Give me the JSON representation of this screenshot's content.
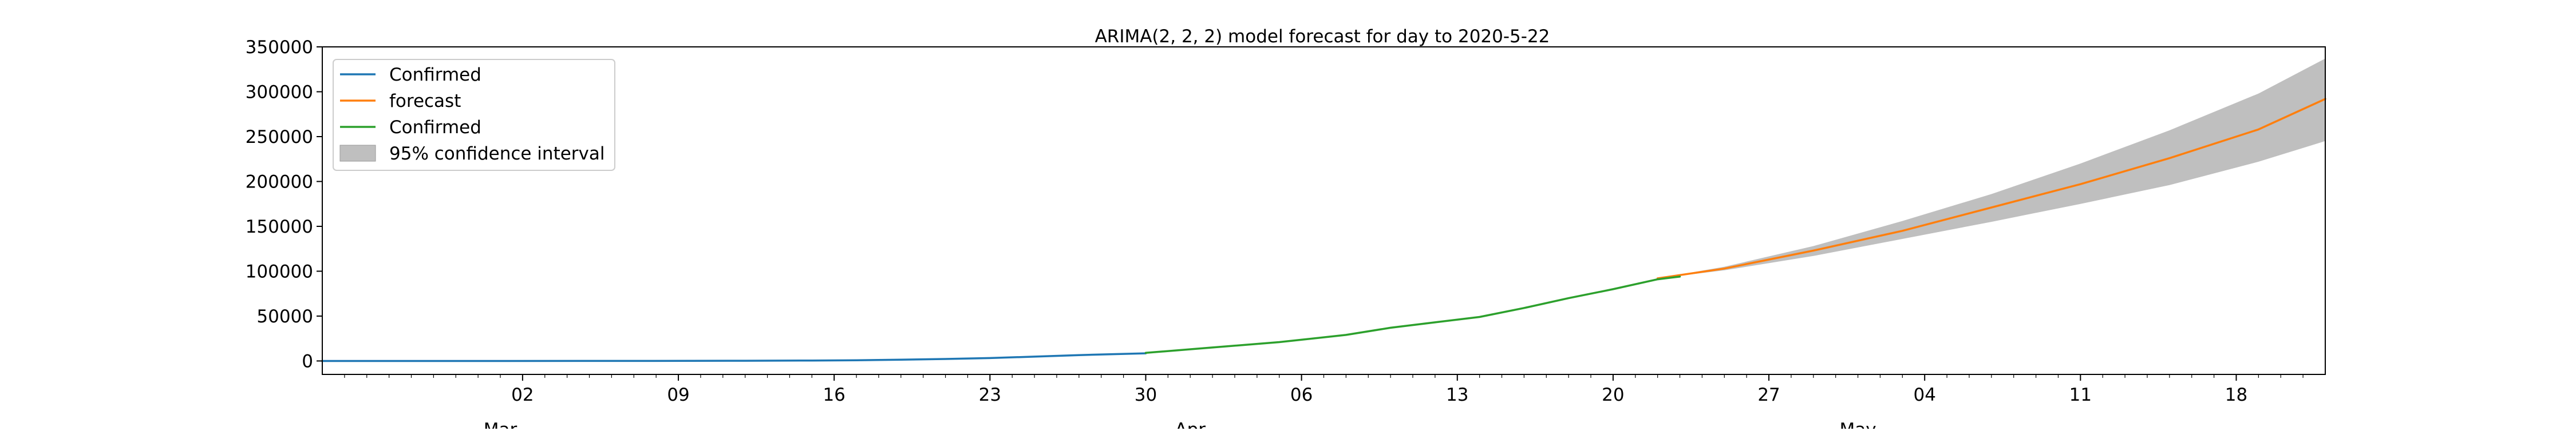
{
  "chart_data": {
    "type": "line",
    "title": "ARIMA(2, 2, 2) model forecast for day to 2020-5-22",
    "xlabel": "",
    "ylabel": "",
    "xlim": [
      "2020-02-22",
      "2020-05-22"
    ],
    "ylim": [
      -15000,
      350000
    ],
    "grid": false,
    "legend_position": "top-left",
    "y_ticks": [
      0,
      50000,
      100000,
      150000,
      200000,
      250000,
      300000,
      350000
    ],
    "y_tick_labels": [
      "0",
      "50000",
      "100000",
      "150000",
      "200000",
      "250000",
      "300000",
      "350000"
    ],
    "x_ticks": [
      {
        "date": "2020-03-02",
        "label": "02"
      },
      {
        "date": "2020-03-09",
        "label": "09"
      },
      {
        "date": "2020-03-16",
        "label": "16"
      },
      {
        "date": "2020-03-23",
        "label": "23"
      },
      {
        "date": "2020-03-30",
        "label": "30"
      },
      {
        "date": "2020-04-06",
        "label": "06"
      },
      {
        "date": "2020-04-13",
        "label": "13"
      },
      {
        "date": "2020-04-20",
        "label": "20"
      },
      {
        "date": "2020-04-27",
        "label": "27"
      },
      {
        "date": "2020-05-04",
        "label": "04"
      },
      {
        "date": "2020-05-11",
        "label": "11"
      },
      {
        "date": "2020-05-18",
        "label": "18"
      }
    ],
    "month_labels": [
      {
        "date": "2020-03-01",
        "label": "Mar"
      },
      {
        "date": "2020-04-01",
        "label": "Apr"
      },
      {
        "date": "2020-05-01",
        "label": "May"
      }
    ],
    "series": [
      {
        "name": "Confirmed",
        "color": "#1f77b4",
        "x": [
          "2020-02-22",
          "2020-02-29",
          "2020-03-07",
          "2020-03-12",
          "2020-03-15",
          "2020-03-17",
          "2020-03-19",
          "2020-03-21",
          "2020-03-23",
          "2020-03-25",
          "2020-03-27",
          "2020-03-30"
        ],
        "y": [
          0,
          0,
          50,
          200,
          500,
          800,
          1400,
          2200,
          3200,
          4800,
          6500,
          8500
        ]
      },
      {
        "name": "forecast",
        "color": "#ff7f0e",
        "x": [
          "2020-04-22",
          "2020-04-25",
          "2020-04-29",
          "2020-05-03",
          "2020-05-07",
          "2020-05-11",
          "2020-05-15",
          "2020-05-19",
          "2020-05-22"
        ],
        "y": [
          92000,
          103000,
          123000,
          145000,
          171000,
          197000,
          226000,
          258000,
          292000
        ]
      },
      {
        "name": "Confirmed",
        "color": "#2ca02c",
        "x": [
          "2020-03-30",
          "2020-04-02",
          "2020-04-05",
          "2020-04-08",
          "2020-04-10",
          "2020-04-12",
          "2020-04-14",
          "2020-04-16",
          "2020-04-18",
          "2020-04-20",
          "2020-04-22",
          "2020-04-23"
        ],
        "y": [
          9000,
          15000,
          21000,
          29000,
          37000,
          43000,
          49000,
          59000,
          70000,
          80000,
          91000,
          94000
        ]
      }
    ],
    "confidence_interval": {
      "name": "95% confidence interval",
      "color": "#bfbfbf",
      "x": [
        "2020-04-22",
        "2020-04-25",
        "2020-04-29",
        "2020-05-03",
        "2020-05-07",
        "2020-05-11",
        "2020-05-15",
        "2020-05-19",
        "2020-05-22"
      ],
      "lower": [
        92000,
        101000,
        117000,
        136000,
        155000,
        175000,
        196000,
        222000,
        245000
      ],
      "upper": [
        92000,
        105000,
        128000,
        156000,
        186000,
        220000,
        257000,
        298000,
        337000
      ]
    },
    "legend": [
      {
        "label": "Confirmed",
        "kind": "line",
        "color": "#1f77b4"
      },
      {
        "label": "forecast",
        "kind": "line",
        "color": "#ff7f0e"
      },
      {
        "label": "Confirmed",
        "kind": "line",
        "color": "#2ca02c"
      },
      {
        "label": "95% confidence interval",
        "kind": "patch",
        "color": "#bfbfbf"
      }
    ]
  }
}
